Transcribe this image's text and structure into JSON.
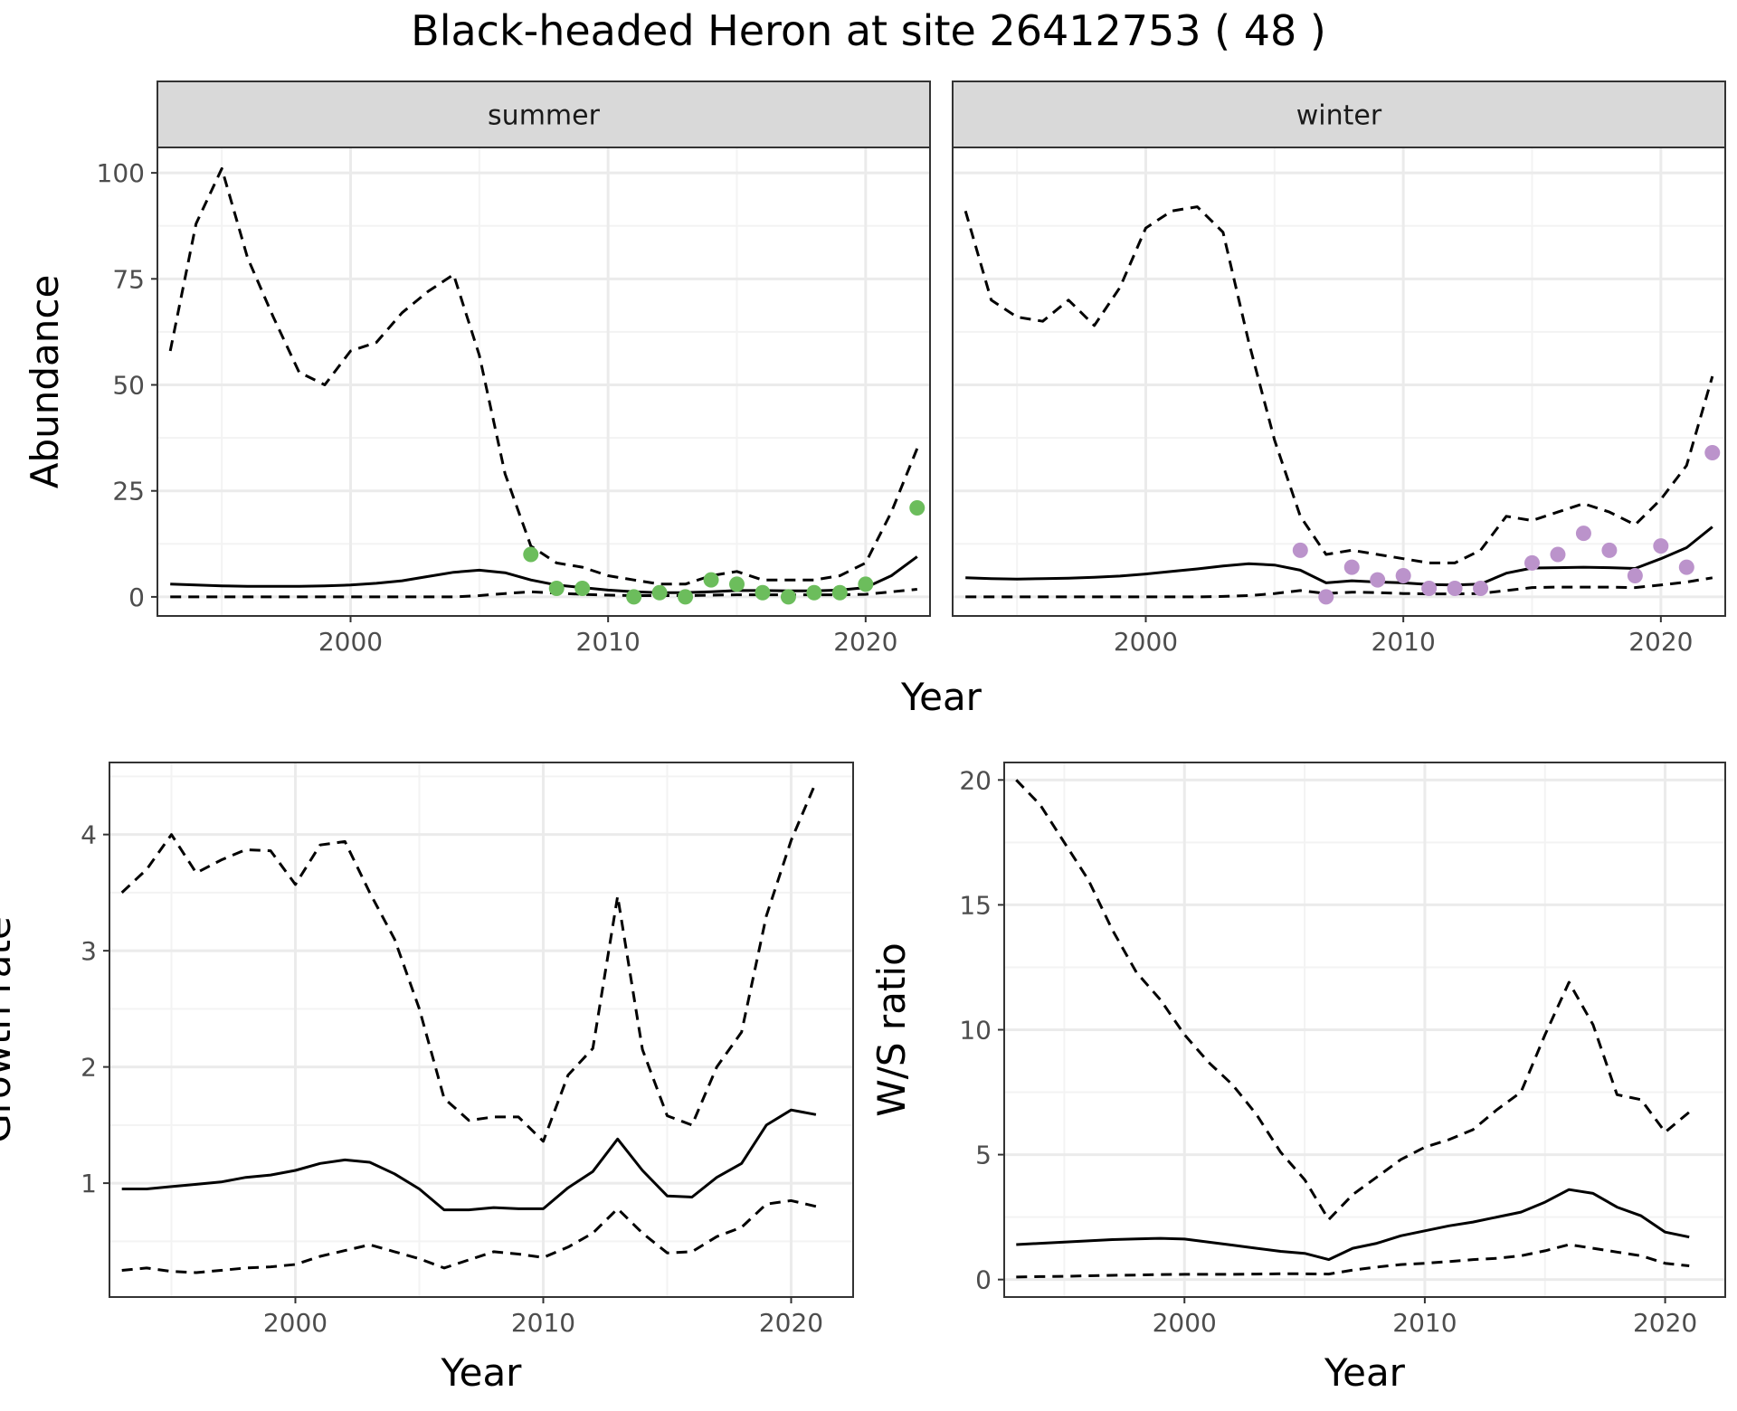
{
  "title": "Black-headed Heron at site 26412753 ( 48 )",
  "colors": {
    "summer_points": "#6cbd5c",
    "winter_points": "#bb93cb",
    "lines": "#000000",
    "grid_major": "#ebebeb",
    "grid_minor": "#f3f3f3",
    "strip_fill": "#d9d9d9",
    "panel_border": "#333333"
  },
  "chart_data": [
    {
      "type": "line",
      "facet_label": "summer",
      "xlabel": "Year",
      "ylabel": "Abundance",
      "xlim": [
        1992.5,
        2022.5
      ],
      "ylim": [
        -4.5,
        106
      ],
      "xticks": [
        2000,
        2010,
        2020
      ],
      "yticks": [
        0,
        25,
        50,
        75,
        100
      ],
      "grid": true,
      "series": [
        {
          "style": "dashed",
          "x": [
            1993,
            1994,
            1995,
            1996,
            1997,
            1998,
            1999,
            2000,
            2001,
            2002,
            2003,
            2004,
            2005,
            2006,
            2007,
            2008,
            2009,
            2010,
            2011,
            2012,
            2013,
            2014,
            2015,
            2016,
            2017,
            2018,
            2019,
            2020,
            2021,
            2022
          ],
          "y": [
            58,
            88,
            101,
            80,
            66,
            53,
            50,
            58,
            60,
            67,
            72,
            76,
            57,
            29,
            12,
            8,
            7,
            5,
            4,
            3,
            3,
            5,
            6,
            4,
            4,
            4,
            5,
            8,
            20,
            35
          ]
        },
        {
          "style": "solid",
          "x": [
            1993,
            1994,
            1995,
            1996,
            1997,
            1998,
            1999,
            2000,
            2001,
            2002,
            2003,
            2004,
            2005,
            2006,
            2007,
            2008,
            2009,
            2010,
            2011,
            2012,
            2013,
            2014,
            2015,
            2016,
            2017,
            2018,
            2019,
            2020,
            2021,
            2022
          ],
          "y": [
            3,
            2.8,
            2.6,
            2.5,
            2.5,
            2.5,
            2.6,
            2.8,
            3.2,
            3.8,
            4.8,
            5.8,
            6.3,
            5.7,
            4,
            2.8,
            2.2,
            1.6,
            1.2,
            1,
            1,
            1.2,
            1.5,
            1.5,
            1.4,
            1.4,
            1.6,
            2.2,
            5,
            9.5
          ]
        },
        {
          "style": "dashed",
          "x": [
            1993,
            1994,
            1995,
            1996,
            1997,
            1998,
            1999,
            2000,
            2001,
            2002,
            2003,
            2004,
            2005,
            2006,
            2007,
            2008,
            2009,
            2010,
            2011,
            2012,
            2013,
            2014,
            2015,
            2016,
            2017,
            2018,
            2019,
            2020,
            2021,
            2022
          ],
          "y": [
            0,
            0,
            0,
            0,
            0,
            0,
            0,
            0,
            0,
            0,
            0,
            0,
            0.3,
            0.8,
            1.2,
            0.9,
            0.6,
            0.4,
            0.3,
            0.3,
            0.3,
            0.4,
            0.5,
            0.5,
            0.5,
            0.5,
            0.5,
            0.6,
            1.2,
            1.8
          ]
        },
        {
          "style": "points",
          "x": [
            2007,
            2008,
            2009,
            2011,
            2012,
            2013,
            2014,
            2015,
            2016,
            2017,
            2018,
            2019,
            2020,
            2022
          ],
          "y": [
            10,
            2,
            2,
            0,
            1,
            0,
            4,
            3,
            1,
            0,
            1,
            1,
            3,
            21
          ]
        }
      ]
    },
    {
      "type": "line",
      "facet_label": "winter",
      "xlabel": "Year",
      "ylabel": "",
      "xlim": [
        1992.5,
        2022.5
      ],
      "ylim": [
        -4.5,
        106
      ],
      "xticks": [
        2000,
        2010,
        2020
      ],
      "yticks": [
        0,
        25,
        50,
        75,
        100
      ],
      "grid": true,
      "series": [
        {
          "style": "dashed",
          "x": [
            1993,
            1994,
            1995,
            1996,
            1997,
            1998,
            1999,
            2000,
            2001,
            2002,
            2003,
            2004,
            2005,
            2006,
            2007,
            2008,
            2009,
            2010,
            2011,
            2012,
            2013,
            2014,
            2015,
            2016,
            2017,
            2018,
            2019,
            2020,
            2021,
            2022
          ],
          "y": [
            91,
            70,
            66,
            65,
            70,
            64,
            73,
            87,
            91,
            92,
            86,
            60,
            37,
            19,
            10,
            11,
            10,
            9,
            8,
            8,
            11,
            19,
            18,
            20,
            22,
            20,
            17,
            23,
            31,
            52
          ]
        },
        {
          "style": "solid",
          "x": [
            1993,
            1994,
            1995,
            1996,
            1997,
            1998,
            1999,
            2000,
            2001,
            2002,
            2003,
            2004,
            2005,
            2006,
            2007,
            2008,
            2009,
            2010,
            2011,
            2012,
            2013,
            2014,
            2015,
            2016,
            2017,
            2018,
            2019,
            2020,
            2021,
            2022
          ],
          "y": [
            4.5,
            4.3,
            4.2,
            4.3,
            4.4,
            4.6,
            4.9,
            5.4,
            6,
            6.6,
            7.3,
            7.8,
            7.5,
            6.3,
            3.3,
            3.8,
            3.5,
            3.3,
            2.9,
            2.8,
            3,
            5.6,
            6.8,
            6.9,
            7,
            6.9,
            6.7,
            9,
            11.6,
            16.5
          ]
        },
        {
          "style": "dashed",
          "x": [
            1993,
            1994,
            1995,
            1996,
            1997,
            1998,
            1999,
            2000,
            2001,
            2002,
            2003,
            2004,
            2005,
            2006,
            2007,
            2008,
            2009,
            2010,
            2011,
            2012,
            2013,
            2014,
            2015,
            2016,
            2017,
            2018,
            2019,
            2020,
            2021,
            2022
          ],
          "y": [
            0,
            0,
            0,
            0,
            0,
            0,
            0,
            0,
            0,
            0,
            0.1,
            0.3,
            0.8,
            1.5,
            0.8,
            1.1,
            1,
            0.8,
            0.7,
            0.7,
            0.8,
            1.5,
            2.2,
            2.3,
            2.3,
            2.3,
            2.2,
            2.8,
            3.5,
            4.5
          ]
        },
        {
          "style": "points",
          "x": [
            2006,
            2007,
            2008,
            2009,
            2010,
            2011,
            2012,
            2013,
            2015,
            2016,
            2017,
            2018,
            2019,
            2020,
            2021,
            2022
          ],
          "y": [
            11,
            0,
            7,
            4,
            5,
            2,
            2,
            2,
            8,
            10,
            15,
            11,
            5,
            12,
            7,
            34
          ]
        }
      ]
    },
    {
      "type": "line",
      "xlabel": "Year",
      "ylabel": "Growth rate",
      "xlim": [
        1992.5,
        2022.5
      ],
      "ylim": [
        0.02,
        4.62
      ],
      "xticks": [
        2000,
        2010,
        2020
      ],
      "yticks": [
        1,
        2,
        3,
        4
      ],
      "grid": true,
      "series": [
        {
          "style": "dashed",
          "x": [
            1993,
            1994,
            1995,
            1996,
            1997,
            1998,
            1999,
            2000,
            2001,
            2002,
            2003,
            2004,
            2005,
            2006,
            2007,
            2008,
            2009,
            2010,
            2011,
            2012,
            2013,
            2014,
            2015,
            2016,
            2017,
            2018,
            2019,
            2020,
            2021
          ],
          "y": [
            3.5,
            3.7,
            4,
            3.67,
            3.78,
            3.87,
            3.86,
            3.57,
            3.91,
            3.94,
            3.5,
            3.1,
            2.5,
            1.73,
            1.54,
            1.57,
            1.57,
            1.36,
            1.93,
            2.16,
            3.47,
            2.15,
            1.58,
            1.5,
            2,
            2.3,
            3.3,
            3.95,
            4.45
          ]
        },
        {
          "style": "solid",
          "x": [
            1993,
            1994,
            1995,
            1996,
            1997,
            1998,
            1999,
            2000,
            2001,
            2002,
            2003,
            2004,
            2005,
            2006,
            2007,
            2008,
            2009,
            2010,
            2011,
            2012,
            2013,
            2014,
            2015,
            2016,
            2017,
            2018,
            2019,
            2020,
            2021
          ],
          "y": [
            0.95,
            0.95,
            0.97,
            0.99,
            1.01,
            1.05,
            1.07,
            1.11,
            1.17,
            1.2,
            1.18,
            1.08,
            0.95,
            0.77,
            0.77,
            0.79,
            0.78,
            0.78,
            0.96,
            1.1,
            1.38,
            1.11,
            0.89,
            0.88,
            1.05,
            1.17,
            1.5,
            1.63,
            1.59
          ]
        },
        {
          "style": "dashed",
          "x": [
            1993,
            1994,
            1995,
            1996,
            1997,
            1998,
            1999,
            2000,
            2001,
            2002,
            2003,
            2004,
            2005,
            2006,
            2007,
            2008,
            2009,
            2010,
            2011,
            2012,
            2013,
            2014,
            2015,
            2016,
            2017,
            2018,
            2019,
            2020,
            2021
          ],
          "y": [
            0.25,
            0.27,
            0.24,
            0.23,
            0.25,
            0.27,
            0.28,
            0.3,
            0.37,
            0.42,
            0.47,
            0.41,
            0.35,
            0.27,
            0.34,
            0.41,
            0.39,
            0.36,
            0.45,
            0.57,
            0.78,
            0.57,
            0.4,
            0.41,
            0.54,
            0.62,
            0.82,
            0.85,
            0.8
          ]
        }
      ]
    },
    {
      "type": "line",
      "xlabel": "Year",
      "ylabel": "W/S ratio",
      "xlim": [
        1992.5,
        2022.5
      ],
      "ylim": [
        -0.7,
        20.7
      ],
      "xticks": [
        2000,
        2010,
        2020
      ],
      "yticks": [
        0,
        5,
        10,
        15,
        20
      ],
      "grid": true,
      "series": [
        {
          "style": "dashed",
          "x": [
            1993,
            1994,
            1995,
            1996,
            1997,
            1998,
            1999,
            2000,
            2001,
            2002,
            2003,
            2004,
            2005,
            2006,
            2007,
            2008,
            2009,
            2010,
            2011,
            2012,
            2013,
            2014,
            2015,
            2016,
            2017,
            2018,
            2019,
            2020,
            2021
          ],
          "y": [
            20,
            19,
            17.5,
            16,
            14,
            12.3,
            11.2,
            9.8,
            8.7,
            7.8,
            6.6,
            5.1,
            4,
            2.4,
            3.4,
            4.1,
            4.8,
            5.3,
            5.6,
            6,
            6.8,
            7.5,
            9.8,
            11.9,
            10.2,
            7.4,
            7.2,
            5.9,
            6.7
          ]
        },
        {
          "style": "solid",
          "x": [
            1993,
            1994,
            1995,
            1996,
            1997,
            1998,
            1999,
            2000,
            2001,
            2002,
            2003,
            2004,
            2005,
            2006,
            2007,
            2008,
            2009,
            2010,
            2011,
            2012,
            2013,
            2014,
            2015,
            2016,
            2017,
            2018,
            2019,
            2020,
            2021
          ],
          "y": [
            1.4,
            1.45,
            1.5,
            1.55,
            1.6,
            1.63,
            1.65,
            1.62,
            1.5,
            1.38,
            1.25,
            1.13,
            1.05,
            0.8,
            1.25,
            1.45,
            1.75,
            1.95,
            2.15,
            2.3,
            2.5,
            2.7,
            3.1,
            3.6,
            3.45,
            2.9,
            2.55,
            1.9,
            1.7
          ]
        },
        {
          "style": "dashed",
          "x": [
            1993,
            1994,
            1995,
            1996,
            1997,
            1998,
            1999,
            2000,
            2001,
            2002,
            2003,
            2004,
            2005,
            2006,
            2007,
            2008,
            2009,
            2010,
            2011,
            2012,
            2013,
            2014,
            2015,
            2016,
            2017,
            2018,
            2019,
            2020,
            2021
          ],
          "y": [
            0.1,
            0.12,
            0.13,
            0.15,
            0.17,
            0.18,
            0.2,
            0.21,
            0.21,
            0.21,
            0.22,
            0.23,
            0.23,
            0.22,
            0.38,
            0.5,
            0.6,
            0.65,
            0.72,
            0.8,
            0.85,
            0.95,
            1.15,
            1.4,
            1.25,
            1.1,
            0.95,
            0.65,
            0.55
          ]
        }
      ]
    }
  ]
}
